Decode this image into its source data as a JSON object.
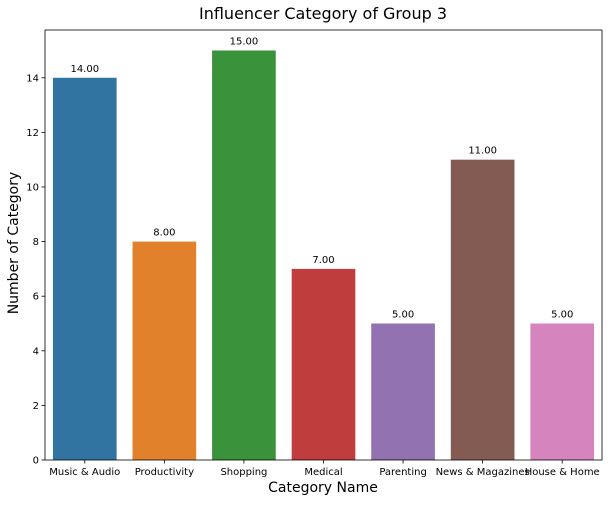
{
  "chart_data": {
    "type": "bar",
    "title": "Influencer Category of Group 3",
    "xlabel": "Category Name",
    "ylabel": "Number of Category",
    "categories": [
      "Music & Audio",
      "Productivity",
      "Shopping",
      "Medical",
      "Parenting",
      "News & Magazines",
      "House & Home"
    ],
    "values": [
      14,
      8,
      15,
      7,
      5,
      11,
      5
    ],
    "value_labels": [
      "14.00",
      "8.00",
      "15.00",
      "7.00",
      "5.00",
      "11.00",
      "5.00"
    ],
    "colors": [
      "#3274a1",
      "#e1812c",
      "#3a923a",
      "#c03d3e",
      "#9372b2",
      "#845b53",
      "#d684bd"
    ],
    "yticks": [
      0,
      2,
      4,
      6,
      8,
      10,
      12,
      14
    ],
    "ylim": [
      0,
      15.75
    ],
    "grid": false,
    "legend": "none"
  }
}
